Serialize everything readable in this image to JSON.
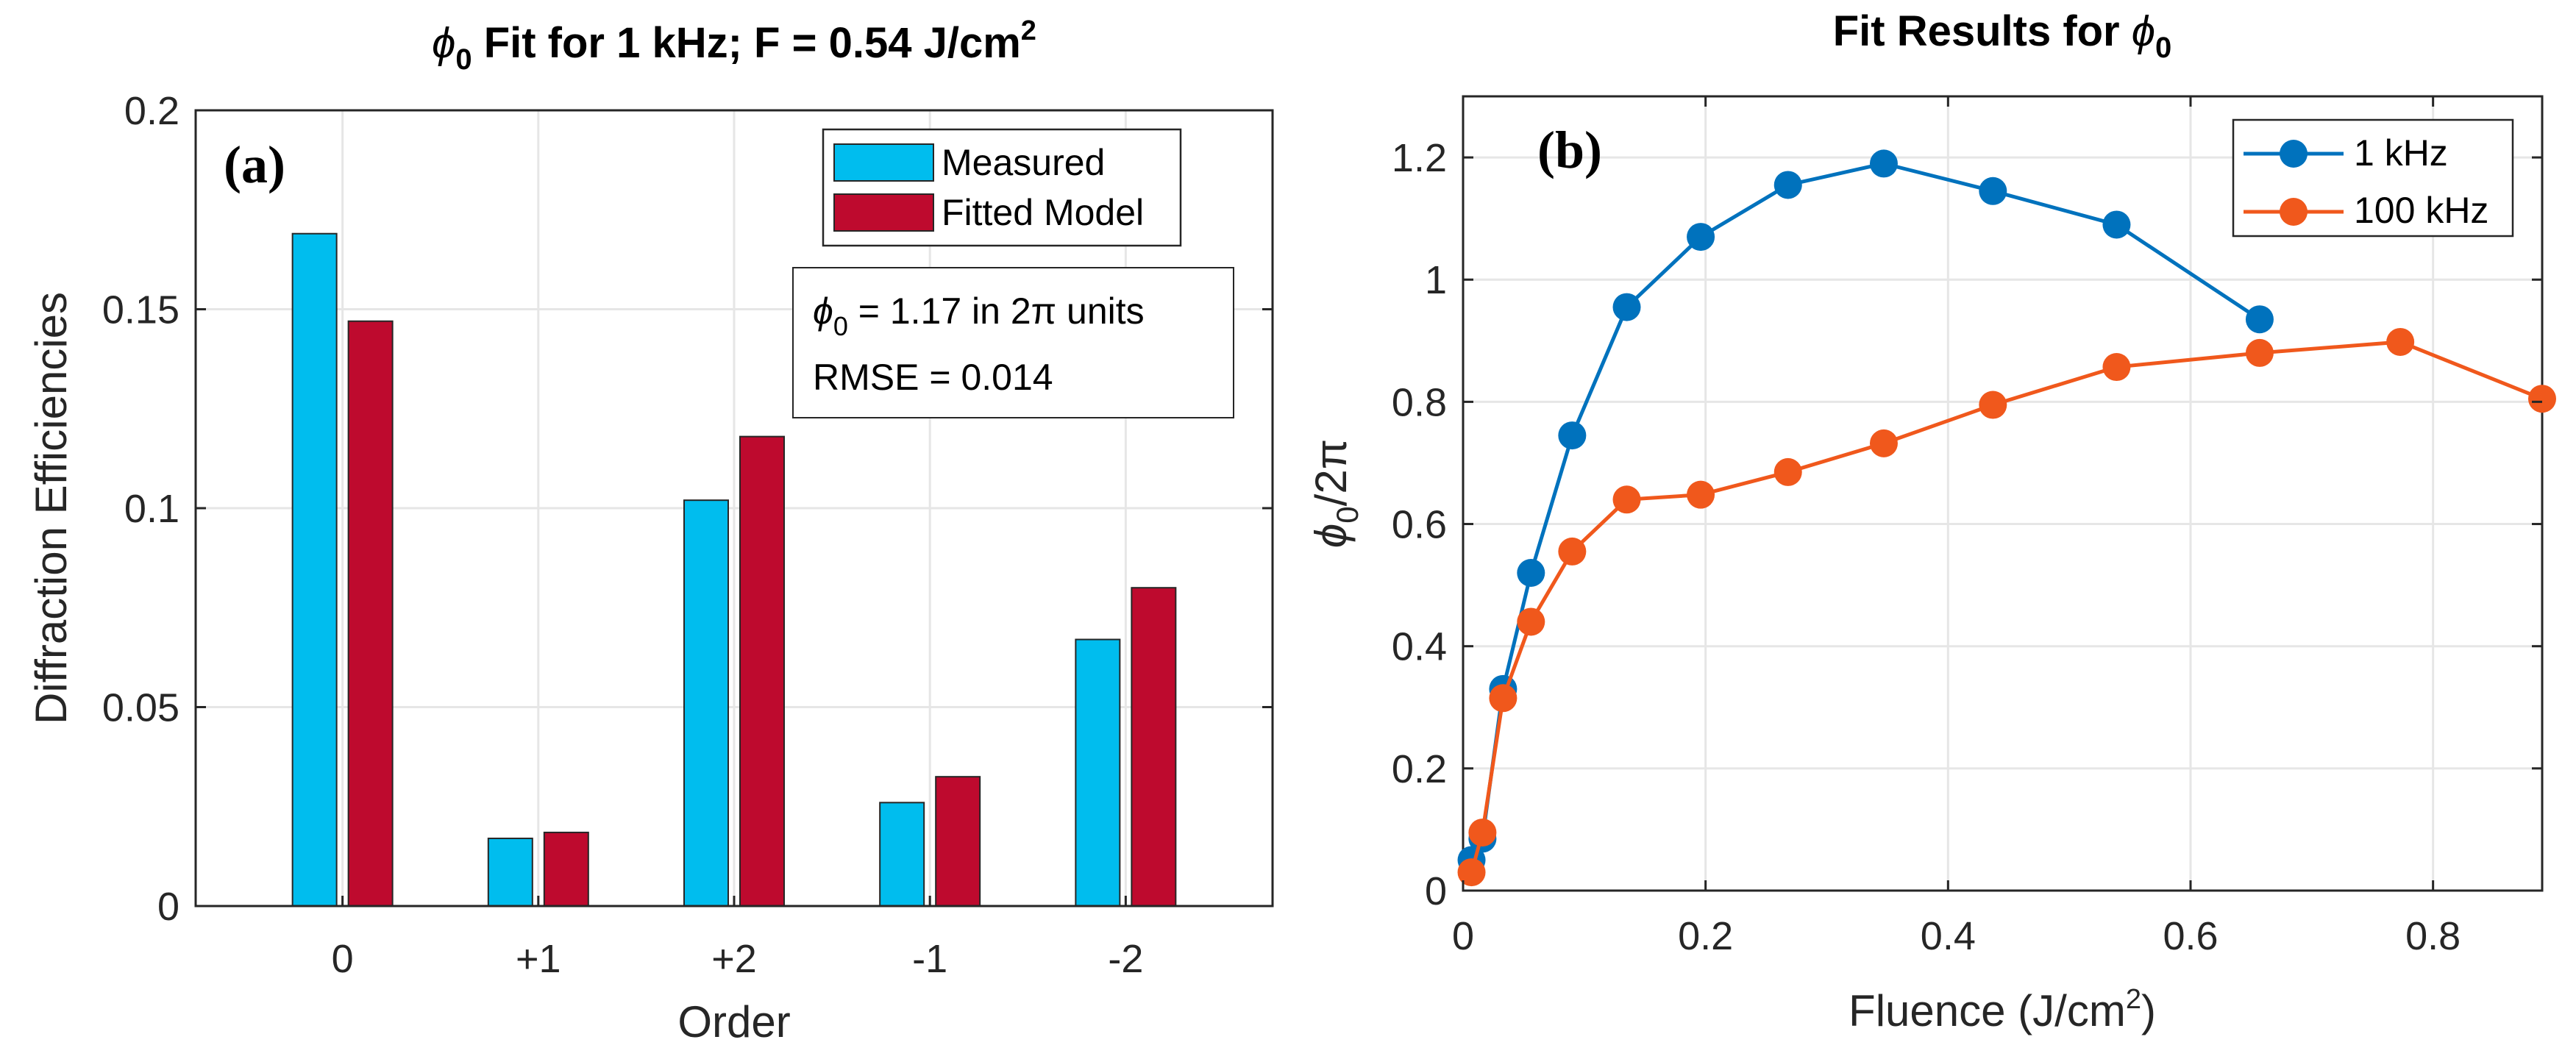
{
  "chart_data": [
    {
      "type": "bar",
      "panel_label": "(a)",
      "title": "ϕ0 Fit for 1 kHz; F = 0.54 J/cm2",
      "title_parts": {
        "phi": "ϕ",
        "sub": "0",
        "main": " Fit for 1 kHz; F = 0.54 J/cm",
        "sup": "2"
      },
      "xlabel": "Order",
      "ylabel": "Diffraction Efficiencies",
      "categories": [
        "0",
        "+1",
        "+2",
        "-1",
        "-2"
      ],
      "series": [
        {
          "name": "Measured",
          "color": "#00BDEE",
          "values": [
            0.169,
            0.017,
            0.102,
            0.026,
            0.067
          ]
        },
        {
          "name": "Fitted Model",
          "color": "#BE0A2E",
          "values": [
            0.147,
            0.0185,
            0.118,
            0.0325,
            0.08
          ]
        }
      ],
      "ylim": [
        0,
        0.2
      ],
      "yticks": [
        0,
        0.05,
        0.1,
        0.15,
        0.2
      ],
      "ytick_labels": [
        "0",
        "0.05",
        "0.1",
        "0.15",
        "0.2"
      ],
      "grid": true,
      "legend_position": "top-right",
      "annotation": {
        "phi": "ϕ",
        "sub": "0",
        "line1": " = 1.17 in 2π units",
        "line2": "RMSE = 0.014"
      }
    },
    {
      "type": "line",
      "panel_label": "(b)",
      "title": "Fit Results for ϕ0",
      "title_parts": {
        "main": "Fit Results for ",
        "phi": "ϕ",
        "sub": "0"
      },
      "xlabel": "Fluence (J/cm2)",
      "xlabel_parts": {
        "main": "Fluence (J/cm",
        "sup": "2",
        "end": ")"
      },
      "ylabel": "ϕ0/2π",
      "ylabel_parts": {
        "phi": "ϕ",
        "sub": "0",
        "rest": "/2π"
      },
      "xlim": [
        0,
        0.89
      ],
      "ylim": [
        0,
        1.3
      ],
      "xticks": [
        0,
        0.2,
        0.4,
        0.6,
        0.8
      ],
      "xtick_labels": [
        "0",
        "0.2",
        "0.4",
        "0.6",
        "0.8"
      ],
      "yticks": [
        0,
        0.2,
        0.4,
        0.6,
        0.8,
        1,
        1.2
      ],
      "ytick_labels": [
        "0",
        "0.2",
        "0.4",
        "0.6",
        "0.8",
        "1",
        "1.2"
      ],
      "grid": true,
      "legend_position": "top-right",
      "series": [
        {
          "name": "1 kHz",
          "color": "#0072BD",
          "x": [
            0.007,
            0.016,
            0.033,
            0.056,
            0.09,
            0.135,
            0.196,
            0.268,
            0.347,
            0.437,
            0.539,
            0.657
          ],
          "y": [
            0.05,
            0.085,
            0.33,
            0.52,
            0.745,
            0.955,
            1.07,
            1.155,
            1.19,
            1.145,
            1.09,
            0.935
          ]
        },
        {
          "name": "100 kHz",
          "color": "#F0581C",
          "x": [
            0.007,
            0.016,
            0.033,
            0.056,
            0.09,
            0.135,
            0.196,
            0.268,
            0.347,
            0.437,
            0.539,
            0.657,
            0.773,
            0.89
          ],
          "y": [
            0.03,
            0.095,
            0.315,
            0.44,
            0.555,
            0.64,
            0.648,
            0.685,
            0.732,
            0.795,
            0.857,
            0.88,
            0.898,
            0.805
          ]
        }
      ]
    }
  ]
}
